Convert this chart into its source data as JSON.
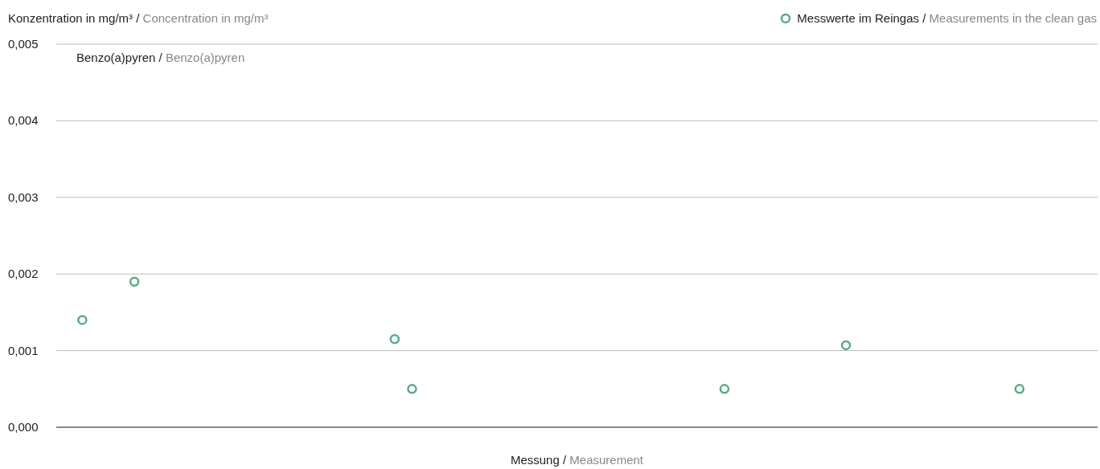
{
  "chart_data": {
    "type": "scatter",
    "title": "Benzo(a)pyren / Benzo(a)pyren",
    "ylabel": "Konzentration in mg/m³ / Concentration in mg/m³",
    "xlabel": "Messung / Measurement",
    "categories": [
      null,
      null,
      null,
      null,
      null,
      null,
      null,
      null,
      null,
      null,
      null,
      null,
      null,
      null,
      null,
      null,
      null,
      null,
      null,
      null,
      null,
      null,
      null,
      null,
      null,
      null,
      null,
      null,
      null,
      null,
      null,
      null,
      null,
      null,
      null,
      null,
      null,
      null,
      null,
      null,
      null,
      null,
      null,
      null,
      null,
      null,
      null,
      null,
      null,
      null,
      null,
      null,
      null,
      null,
      null,
      null,
      null,
      null,
      null,
      null
    ],
    "series": [
      {
        "name": "Messwerte im Reingas / Measurements in the clean gas",
        "color": "#5aab86",
        "values": [
          null,
          0.0014,
          null,
          null,
          0.0019,
          null,
          null,
          null,
          null,
          null,
          null,
          null,
          null,
          null,
          null,
          null,
          null,
          null,
          null,
          0.00115,
          0.0005,
          null,
          null,
          null,
          null,
          null,
          null,
          null,
          null,
          null,
          null,
          null,
          null,
          null,
          null,
          null,
          null,
          null,
          0.0005,
          null,
          null,
          null,
          null,
          null,
          null,
          0.00107,
          null,
          null,
          null,
          null,
          null,
          null,
          null,
          null,
          null,
          0.0005,
          null,
          null,
          null,
          null
        ]
      }
    ],
    "ylim": [
      0,
      0.005
    ],
    "yticks": [
      {
        "value": 0,
        "label": "0,000"
      },
      {
        "value": 0.001,
        "label": "0,001"
      },
      {
        "value": 0.002,
        "label": "0,002"
      },
      {
        "value": 0.003,
        "label": "0,003"
      },
      {
        "value": 0.004,
        "label": "0,004"
      },
      {
        "value": 0.005,
        "label": "0,005"
      }
    ],
    "grid": "y",
    "legend": "top right",
    "marker": "circle",
    "tick_labels": "y"
  }
}
